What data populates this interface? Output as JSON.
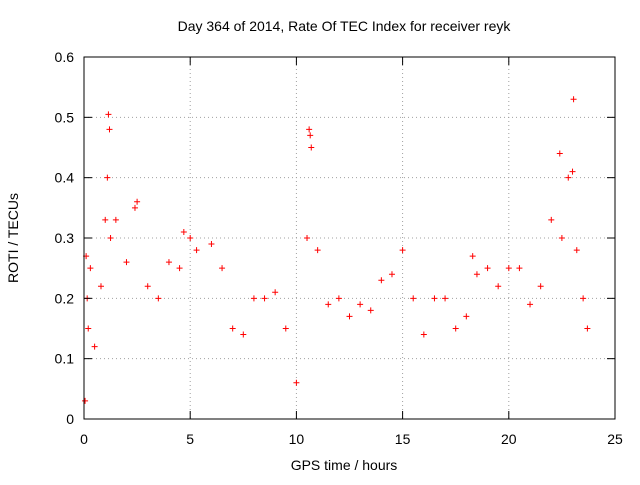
{
  "chart_data": {
    "type": "scatter",
    "title": "Day 364 of 2014, Rate Of TEC Index for receiver reyk",
    "xlabel": "GPS time / hours",
    "ylabel": "ROTI / TECUs",
    "xlim": [
      0,
      25
    ],
    "ylim": [
      0,
      0.6
    ],
    "xticks": [
      0,
      5,
      10,
      15,
      20,
      25
    ],
    "yticks": [
      0,
      0.1,
      0.2,
      0.3,
      0.4,
      0.5,
      0.6
    ],
    "xtick_labels": [
      "0",
      "5",
      "10",
      "15",
      "20",
      "25"
    ],
    "ytick_labels": [
      "0",
      "0.1",
      "0.2",
      "0.3",
      "0.4",
      "0.5",
      "0.6"
    ],
    "grid": true,
    "marker": "+",
    "series_color": "#ff0000",
    "series": [
      {
        "name": "ROTI",
        "x": [
          0.05,
          0.1,
          0.15,
          0.2,
          0.3,
          0.5,
          0.8,
          1.0,
          1.1,
          1.15,
          1.2,
          1.25,
          1.5,
          2.0,
          2.4,
          2.5,
          3.0,
          3.5,
          4.0,
          4.5,
          4.7,
          5.0,
          5.3,
          6.0,
          6.5,
          7.0,
          7.5,
          8.0,
          8.5,
          9.0,
          9.5,
          10.0,
          10.5,
          10.6,
          10.65,
          10.7,
          11.0,
          11.5,
          12.0,
          12.5,
          13.0,
          13.5,
          14.0,
          14.5,
          15.0,
          15.5,
          16.0,
          16.5,
          17.0,
          17.5,
          18.0,
          18.3,
          18.5,
          19.0,
          19.5,
          20.0,
          20.5,
          21.0,
          21.5,
          22.0,
          22.4,
          22.5,
          22.8,
          23.0,
          23.05,
          23.2,
          23.5,
          23.7
        ],
        "y": [
          0.03,
          0.27,
          0.2,
          0.15,
          0.25,
          0.12,
          0.22,
          0.33,
          0.4,
          0.505,
          0.48,
          0.3,
          0.33,
          0.26,
          0.35,
          0.36,
          0.22,
          0.2,
          0.26,
          0.25,
          0.31,
          0.3,
          0.28,
          0.29,
          0.25,
          0.15,
          0.14,
          0.2,
          0.2,
          0.21,
          0.15,
          0.06,
          0.3,
          0.48,
          0.47,
          0.45,
          0.28,
          0.19,
          0.2,
          0.17,
          0.19,
          0.18,
          0.23,
          0.24,
          0.28,
          0.2,
          0.14,
          0.2,
          0.2,
          0.15,
          0.17,
          0.27,
          0.24,
          0.25,
          0.22,
          0.25,
          0.25,
          0.19,
          0.22,
          0.33,
          0.44,
          0.3,
          0.4,
          0.41,
          0.53,
          0.28,
          0.2,
          0.15
        ]
      }
    ]
  }
}
